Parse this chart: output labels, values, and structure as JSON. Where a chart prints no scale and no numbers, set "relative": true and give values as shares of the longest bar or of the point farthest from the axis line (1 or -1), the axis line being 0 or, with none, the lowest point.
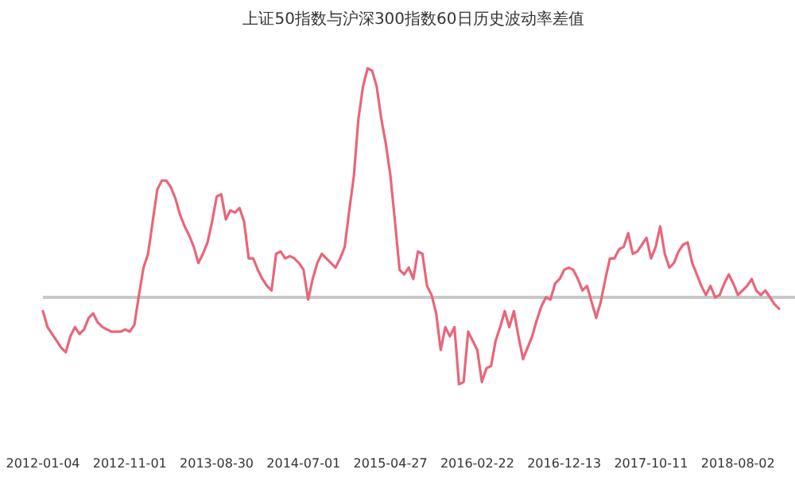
{
  "chart_data": {
    "type": "line",
    "title": "上证50指数与沪深300指数60日历史波动率差值",
    "relative": true,
    "categories": [
      "2012-01-04",
      null,
      null,
      null,
      null,
      null,
      null,
      null,
      null,
      null,
      null,
      null,
      null,
      null,
      null,
      null,
      null,
      null,
      null,
      "2012-11-01",
      null,
      null,
      null,
      null,
      null,
      null,
      null,
      null,
      null,
      null,
      null,
      null,
      null,
      null,
      null,
      null,
      null,
      null,
      "2013-08-30",
      null,
      null,
      null,
      null,
      null,
      null,
      null,
      null,
      null,
      null,
      null,
      null,
      null,
      null,
      null,
      null,
      null,
      null,
      "2014-07-01",
      null,
      null,
      null,
      null,
      null,
      null,
      null,
      null,
      null,
      null,
      null,
      null,
      null,
      null,
      null,
      null,
      null,
      null,
      "2015-04-27",
      null,
      null,
      null,
      null,
      null,
      null,
      null,
      null,
      null,
      null,
      null,
      null,
      null,
      null,
      null,
      null,
      null,
      null,
      "2016-02-22",
      null,
      null,
      null,
      null,
      null,
      null,
      null,
      null,
      null,
      null,
      null,
      null,
      null,
      null,
      null,
      null,
      null,
      null,
      "2016-12-13",
      null,
      null,
      null,
      null,
      null,
      null,
      null,
      null,
      null,
      null,
      null,
      null,
      null,
      null,
      null,
      null,
      null,
      null,
      "2017-10-11",
      null,
      null,
      null,
      null,
      null,
      null,
      null,
      null,
      null,
      null,
      null,
      null,
      null,
      null,
      null,
      null,
      null,
      null,
      "2018-08-02",
      null,
      null,
      null,
      null,
      null,
      null,
      null,
      null,
      null
    ],
    "series": [
      {
        "color": "#e8667a",
        "values": [
          -0.06,
          -0.13,
          -0.16,
          -0.19,
          -0.22,
          -0.24,
          -0.17,
          -0.13,
          -0.16,
          -0.14,
          -0.09,
          -0.07,
          -0.11,
          -0.13,
          -0.14,
          -0.15,
          -0.15,
          -0.15,
          -0.14,
          -0.15,
          -0.12,
          0.01,
          0.13,
          0.19,
          0.33,
          0.47,
          0.51,
          0.51,
          0.48,
          0.43,
          0.36,
          0.31,
          0.27,
          0.22,
          0.15,
          0.19,
          0.24,
          0.33,
          0.44,
          0.45,
          0.34,
          0.38,
          0.37,
          0.39,
          0.33,
          0.17,
          0.17,
          0.12,
          0.08,
          0.05,
          0.03,
          0.19,
          0.2,
          0.17,
          0.18,
          0.17,
          0.15,
          0.12,
          -0.01,
          0.08,
          0.15,
          0.19,
          0.17,
          0.15,
          0.13,
          0.17,
          0.22,
          0.38,
          0.53,
          0.78,
          0.92,
          1.0,
          0.99,
          0.92,
          0.78,
          0.67,
          0.53,
          0.33,
          0.12,
          0.1,
          0.13,
          0.08,
          0.2,
          0.19,
          0.05,
          0.01,
          -0.07,
          -0.23,
          -0.13,
          -0.17,
          -0.13,
          -0.38,
          -0.37,
          -0.15,
          -0.19,
          -0.23,
          -0.37,
          -0.31,
          -0.3,
          -0.19,
          -0.13,
          -0.06,
          -0.13,
          -0.06,
          -0.17,
          -0.27,
          -0.22,
          -0.17,
          -0.1,
          -0.04,
          0,
          -0.01,
          0.06,
          0.08,
          0.12,
          0.13,
          0.12,
          0.08,
          0.03,
          0.05,
          -0.02,
          -0.09,
          -0.02,
          0.08,
          0.17,
          0.17,
          0.21,
          0.22,
          0.28,
          0.19,
          0.2,
          0.23,
          0.26,
          0.17,
          0.22,
          0.31,
          0.19,
          0.13,
          0.15,
          0.2,
          0.23,
          0.24,
          0.15,
          0.1,
          0.05,
          0.01,
          0.05,
          0,
          0.01,
          0.06,
          0.1,
          0.06,
          0.01,
          0.03,
          0.05,
          0.08,
          0.03,
          0.01,
          0.03,
          0,
          -0.03,
          -0.05
        ]
      }
    ]
  }
}
